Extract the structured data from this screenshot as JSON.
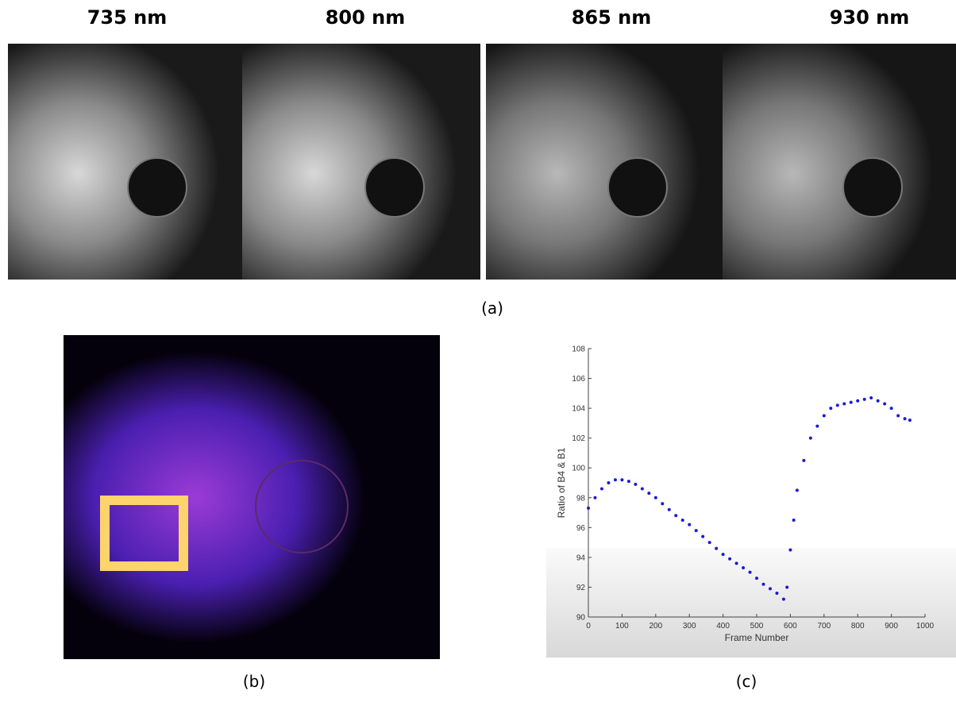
{
  "panel_a": {
    "labels": [
      "735 nm",
      "800 nm",
      "865 nm",
      "930 nm"
    ],
    "caption": "(a)"
  },
  "panel_b": {
    "caption": "(b)"
  },
  "panel_c": {
    "caption": "(c)"
  },
  "chart_data": {
    "type": "scatter",
    "xlabel": "Frame Number",
    "ylabel": "Ratio of B4 & B1",
    "color": "#1a1ad6",
    "x": [
      0,
      20,
      40,
      60,
      80,
      100,
      120,
      140,
      160,
      180,
      200,
      220,
      240,
      260,
      280,
      300,
      320,
      340,
      360,
      380,
      400,
      420,
      440,
      460,
      480,
      500,
      520,
      540,
      560,
      580,
      590,
      600,
      610,
      620,
      640,
      660,
      680,
      700,
      720,
      740,
      760,
      780,
      800,
      820,
      840,
      860,
      880,
      900,
      920,
      940,
      955
    ],
    "y": [
      97.3,
      98,
      98.6,
      99,
      99.2,
      99.2,
      99.1,
      98.9,
      98.6,
      98.3,
      98,
      97.6,
      97.2,
      96.8,
      96.5,
      96.2,
      95.8,
      95.4,
      95,
      94.6,
      94.2,
      93.9,
      93.6,
      93.3,
      93,
      92.6,
      92.2,
      91.9,
      91.6,
      91.2,
      92,
      94.5,
      96.5,
      98.5,
      100.5,
      102,
      102.8,
      103.5,
      104,
      104.2,
      104.3,
      104.4,
      104.5,
      104.6,
      104.7,
      104.5,
      104.3,
      104,
      103.5,
      103.3,
      103.2
    ],
    "xlim": [
      0,
      1000
    ],
    "ylim": [
      90,
      108
    ],
    "xticks": [
      0,
      100,
      200,
      300,
      400,
      500,
      600,
      700,
      800,
      900,
      1000
    ],
    "yticks": [
      90,
      92,
      94,
      96,
      98,
      100,
      102,
      104,
      106,
      108
    ]
  }
}
